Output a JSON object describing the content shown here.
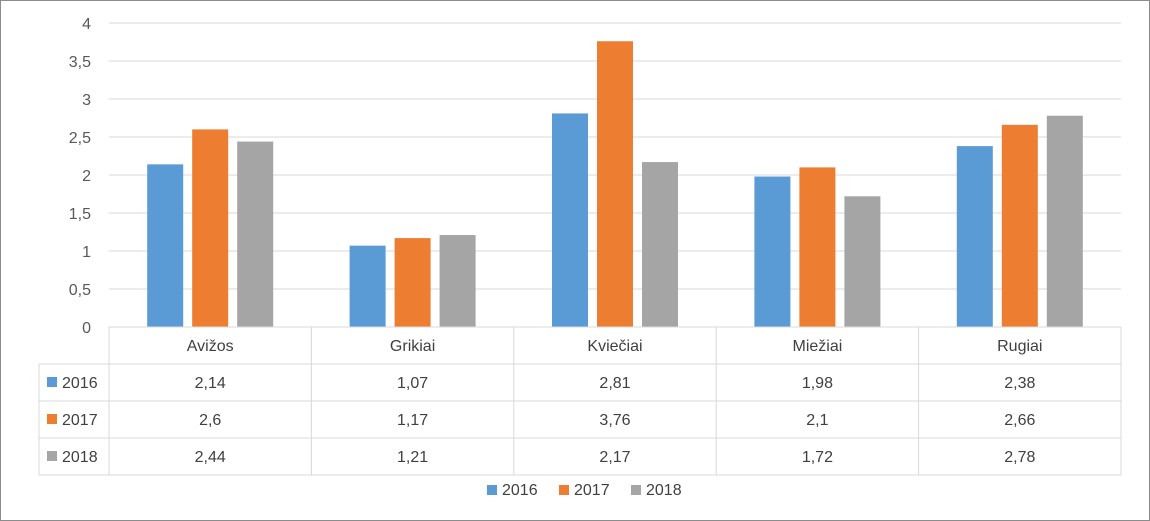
{
  "chart_data": {
    "type": "bar",
    "categories": [
      "Avižos",
      "Grikiai",
      "Kviečiai",
      "Miežiai",
      "Rugiai"
    ],
    "series": [
      {
        "name": "2016",
        "color": "#5b9bd5",
        "values": [
          2.14,
          1.07,
          2.81,
          1.98,
          2.38
        ],
        "labels": [
          "2,14",
          "1,07",
          "2,81",
          "1,98",
          "2,38"
        ]
      },
      {
        "name": "2017",
        "color": "#ed7d31",
        "values": [
          2.6,
          1.17,
          3.76,
          2.1,
          2.66
        ],
        "labels": [
          "2,6",
          "1,17",
          "3,76",
          "2,1",
          "2,66"
        ]
      },
      {
        "name": "2018",
        "color": "#a5a5a5",
        "values": [
          2.44,
          1.21,
          2.17,
          1.72,
          2.78
        ],
        "labels": [
          "2,44",
          "1,21",
          "2,17",
          "1,72",
          "2,78"
        ]
      }
    ],
    "y_ticks": [
      {
        "value": 0,
        "label": "0"
      },
      {
        "value": 0.5,
        "label": "0,5"
      },
      {
        "value": 1,
        "label": "1"
      },
      {
        "value": 1.5,
        "label": "1,5"
      },
      {
        "value": 2,
        "label": "2"
      },
      {
        "value": 2.5,
        "label": "2,5"
      },
      {
        "value": 3,
        "label": "3"
      },
      {
        "value": 3.5,
        "label": "3,5"
      },
      {
        "value": 4,
        "label": "4"
      }
    ],
    "ylim": [
      0,
      4
    ],
    "grid": true,
    "data_table": true,
    "legend_position": "bottom",
    "title": "",
    "xlabel": "",
    "ylabel": ""
  }
}
